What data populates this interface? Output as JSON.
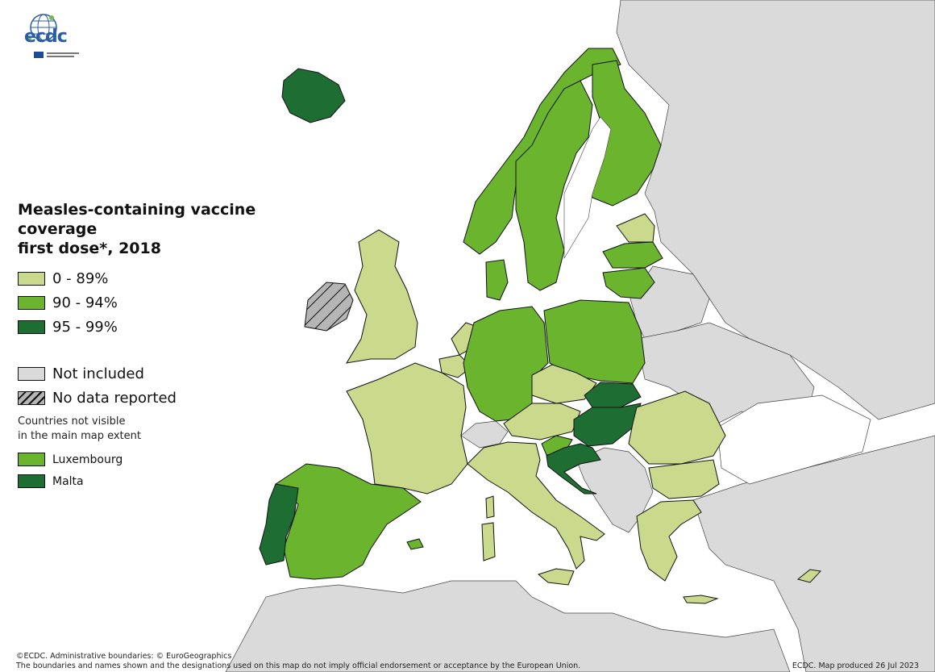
{
  "colors": {
    "sea": "#ffffff",
    "not_included": "#dadada",
    "light": "#cbd98c",
    "mid": "#6ab42e",
    "dark": "#1e6e33",
    "nodata": "#b0b0b0",
    "border": "#111111"
  },
  "logo": {
    "text": "ecdc",
    "icon": "globe-logo-icon"
  },
  "legend": {
    "title_line1": "Measles-containing vaccine coverage",
    "title_line2": "first dose*, 2018",
    "items": [
      {
        "label": "0 - 89%",
        "class": "light"
      },
      {
        "label": "90 - 94%",
        "class": "mid"
      },
      {
        "label": "95 - 99%",
        "class": "dark"
      }
    ],
    "not_included": "Not included",
    "no_data": "No data reported",
    "note_line1": "Countries not visible",
    "note_line2": "in the main map extent",
    "small": [
      {
        "label": "Luxembourg",
        "class": "mid"
      },
      {
        "label": "Malta",
        "class": "dark"
      }
    ]
  },
  "footer": {
    "line1": "©ECDC. Administrative boundaries: © EuroGeographics",
    "line2": "The boundaries and names shown and the designations used on this map do not imply official endorsement or acceptance by the European Union.",
    "right": "ECDC. Map produced 26 Jul 2023"
  }
}
